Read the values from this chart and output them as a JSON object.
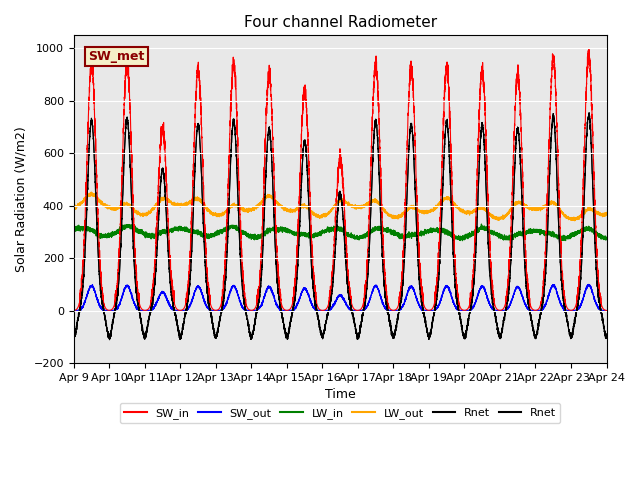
{
  "title": "Four channel Radiometer",
  "ylabel": "Solar Radiation (W/m2)",
  "xlabel": "Time",
  "ylim": [
    -200,
    1050
  ],
  "annotation_text": "SW_met",
  "annotation_bg": "#f5f0c8",
  "annotation_border": "#8b0000",
  "annotation_text_color": "#8b0000",
  "n_days": 15,
  "sw_in_peaks": [
    940,
    950,
    700,
    920,
    940,
    900,
    840,
    580,
    940,
    920,
    930,
    920,
    900,
    960,
    970
  ],
  "plot_bg": "#e8e8e8",
  "fig_bg": "#ffffff",
  "pts_per_day": 480
}
